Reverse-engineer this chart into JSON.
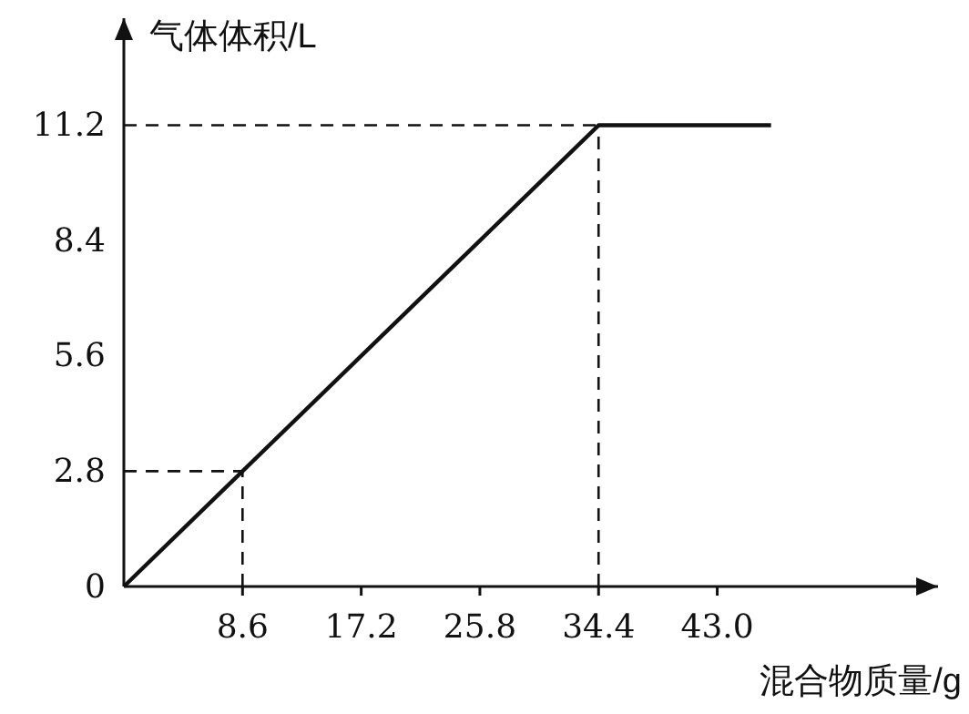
{
  "chart_data": {
    "type": "line",
    "xlabel": "混合物质量/g",
    "ylabel": "气体体积/L",
    "x": [
      0,
      8.6,
      34.4,
      46.9
    ],
    "series": [
      {
        "color": "#111111",
        "values": [
          0,
          2.8,
          11.2,
          11.2
        ]
      }
    ],
    "xlim": [
      0,
      59
    ],
    "ylim": [
      0,
      13.8
    ],
    "xticks": [
      8.6,
      17.2,
      25.8,
      34.4,
      {
        "value": 43,
        "label": "43.0"
      }
    ],
    "yticks": [
      0,
      2.8,
      5.6,
      8.4,
      11.2
    ],
    "ref_lines": [
      {
        "axis": "x",
        "value": 8.6,
        "line_style": "dashed"
      },
      {
        "axis": "y",
        "value": 2.8,
        "line_style": "dashed"
      },
      {
        "axis": "x",
        "value": 34.4,
        "line_style": "dashed"
      },
      {
        "axis": "y",
        "value": 11.2,
        "line_style": "dashed"
      }
    ],
    "grid": false,
    "marker": "none",
    "line_style": "solid"
  }
}
